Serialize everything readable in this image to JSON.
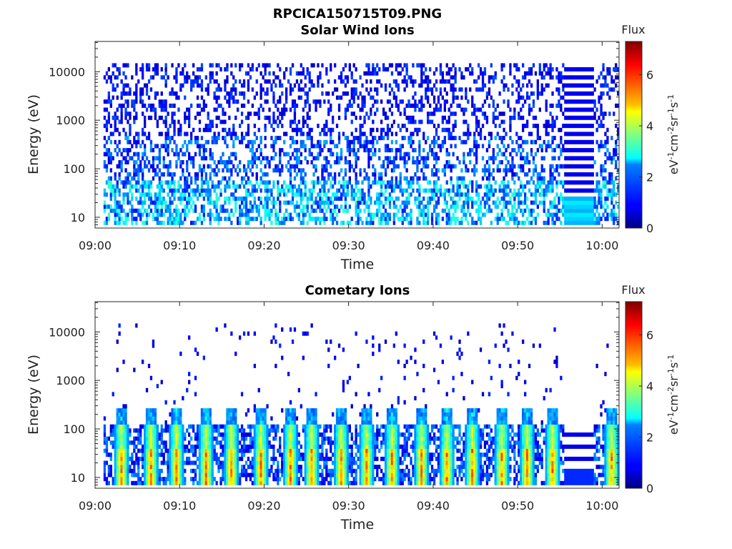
{
  "figure": {
    "title": "RPCICA150715T09.PNG"
  },
  "chart_data": [
    {
      "type": "heatmap",
      "title": "Solar Wind Ions",
      "xlabel": "Time",
      "ylabel": "Energy (eV)",
      "y_scale": "log",
      "xlim": [
        "09:00",
        "10:02"
      ],
      "ylim": [
        6,
        42000
      ],
      "x_ticks": [
        "09:00",
        "09:10",
        "09:20",
        "09:30",
        "09:40",
        "09:50",
        "10:00"
      ],
      "y_ticks": [
        "10",
        "100",
        "1000",
        "10000"
      ],
      "y_tick_values": [
        10,
        100,
        1000,
        10000
      ],
      "colorbar": {
        "title": "Flux",
        "unit": "eV-1cm-2sr-1s-1",
        "range": [
          0,
          7.3
        ],
        "ticks": [
          "0",
          "2",
          "4",
          "6"
        ],
        "tick_values": [
          0,
          2,
          4,
          6
        ],
        "colormap": "jet"
      },
      "data_start": "09:01",
      "data_end": "10:02",
      "gap_segment": {
        "start": "09:55:30",
        "end": "09:59:00"
      },
      "description": "Sparse dark-blue flux (values ~0.5-2) from ~8 eV to ~15000 eV, with cyan/light-blue enhancements (values ~2-3) at the lowest energies (8-60 eV)"
    },
    {
      "type": "heatmap",
      "title": "Cometary Ions",
      "xlabel": "Time",
      "ylabel": "Energy (eV)",
      "y_scale": "log",
      "xlim": [
        "09:00",
        "10:02"
      ],
      "ylim": [
        6,
        42000
      ],
      "x_ticks": [
        "09:00",
        "09:10",
        "09:20",
        "09:30",
        "09:40",
        "09:50",
        "10:00"
      ],
      "y_ticks": [
        "10",
        "100",
        "1000",
        "10000"
      ],
      "y_tick_values": [
        10,
        100,
        1000,
        10000
      ],
      "colorbar": {
        "title": "Flux",
        "unit": "eV-1cm-2sr-1s-1",
        "range": [
          0,
          7.3
        ],
        "ticks": [
          "0",
          "2",
          "4",
          "6"
        ],
        "tick_values": [
          0,
          2,
          4,
          6
        ],
        "colormap": "jet"
      },
      "data_start": "09:01",
      "data_end": "10:02",
      "gap_segment": {
        "start": "09:55:30",
        "end": "09:59:00"
      },
      "burst_times_min": [
        3,
        6.5,
        9.5,
        13,
        16,
        19.5,
        23,
        25.5,
        29,
        32,
        35,
        38.5,
        41.5,
        44.5,
        48,
        51,
        54,
        61
      ],
      "burst_peak_flux": 6.0,
      "burst_energy_range_eV": [
        7,
        250
      ],
      "description": "Periodic high-flux bursts (yellow to red, ~4-6) at 7-100 eV with blue background up to ~120 eV and sparse points up to ~15000 eV"
    }
  ]
}
